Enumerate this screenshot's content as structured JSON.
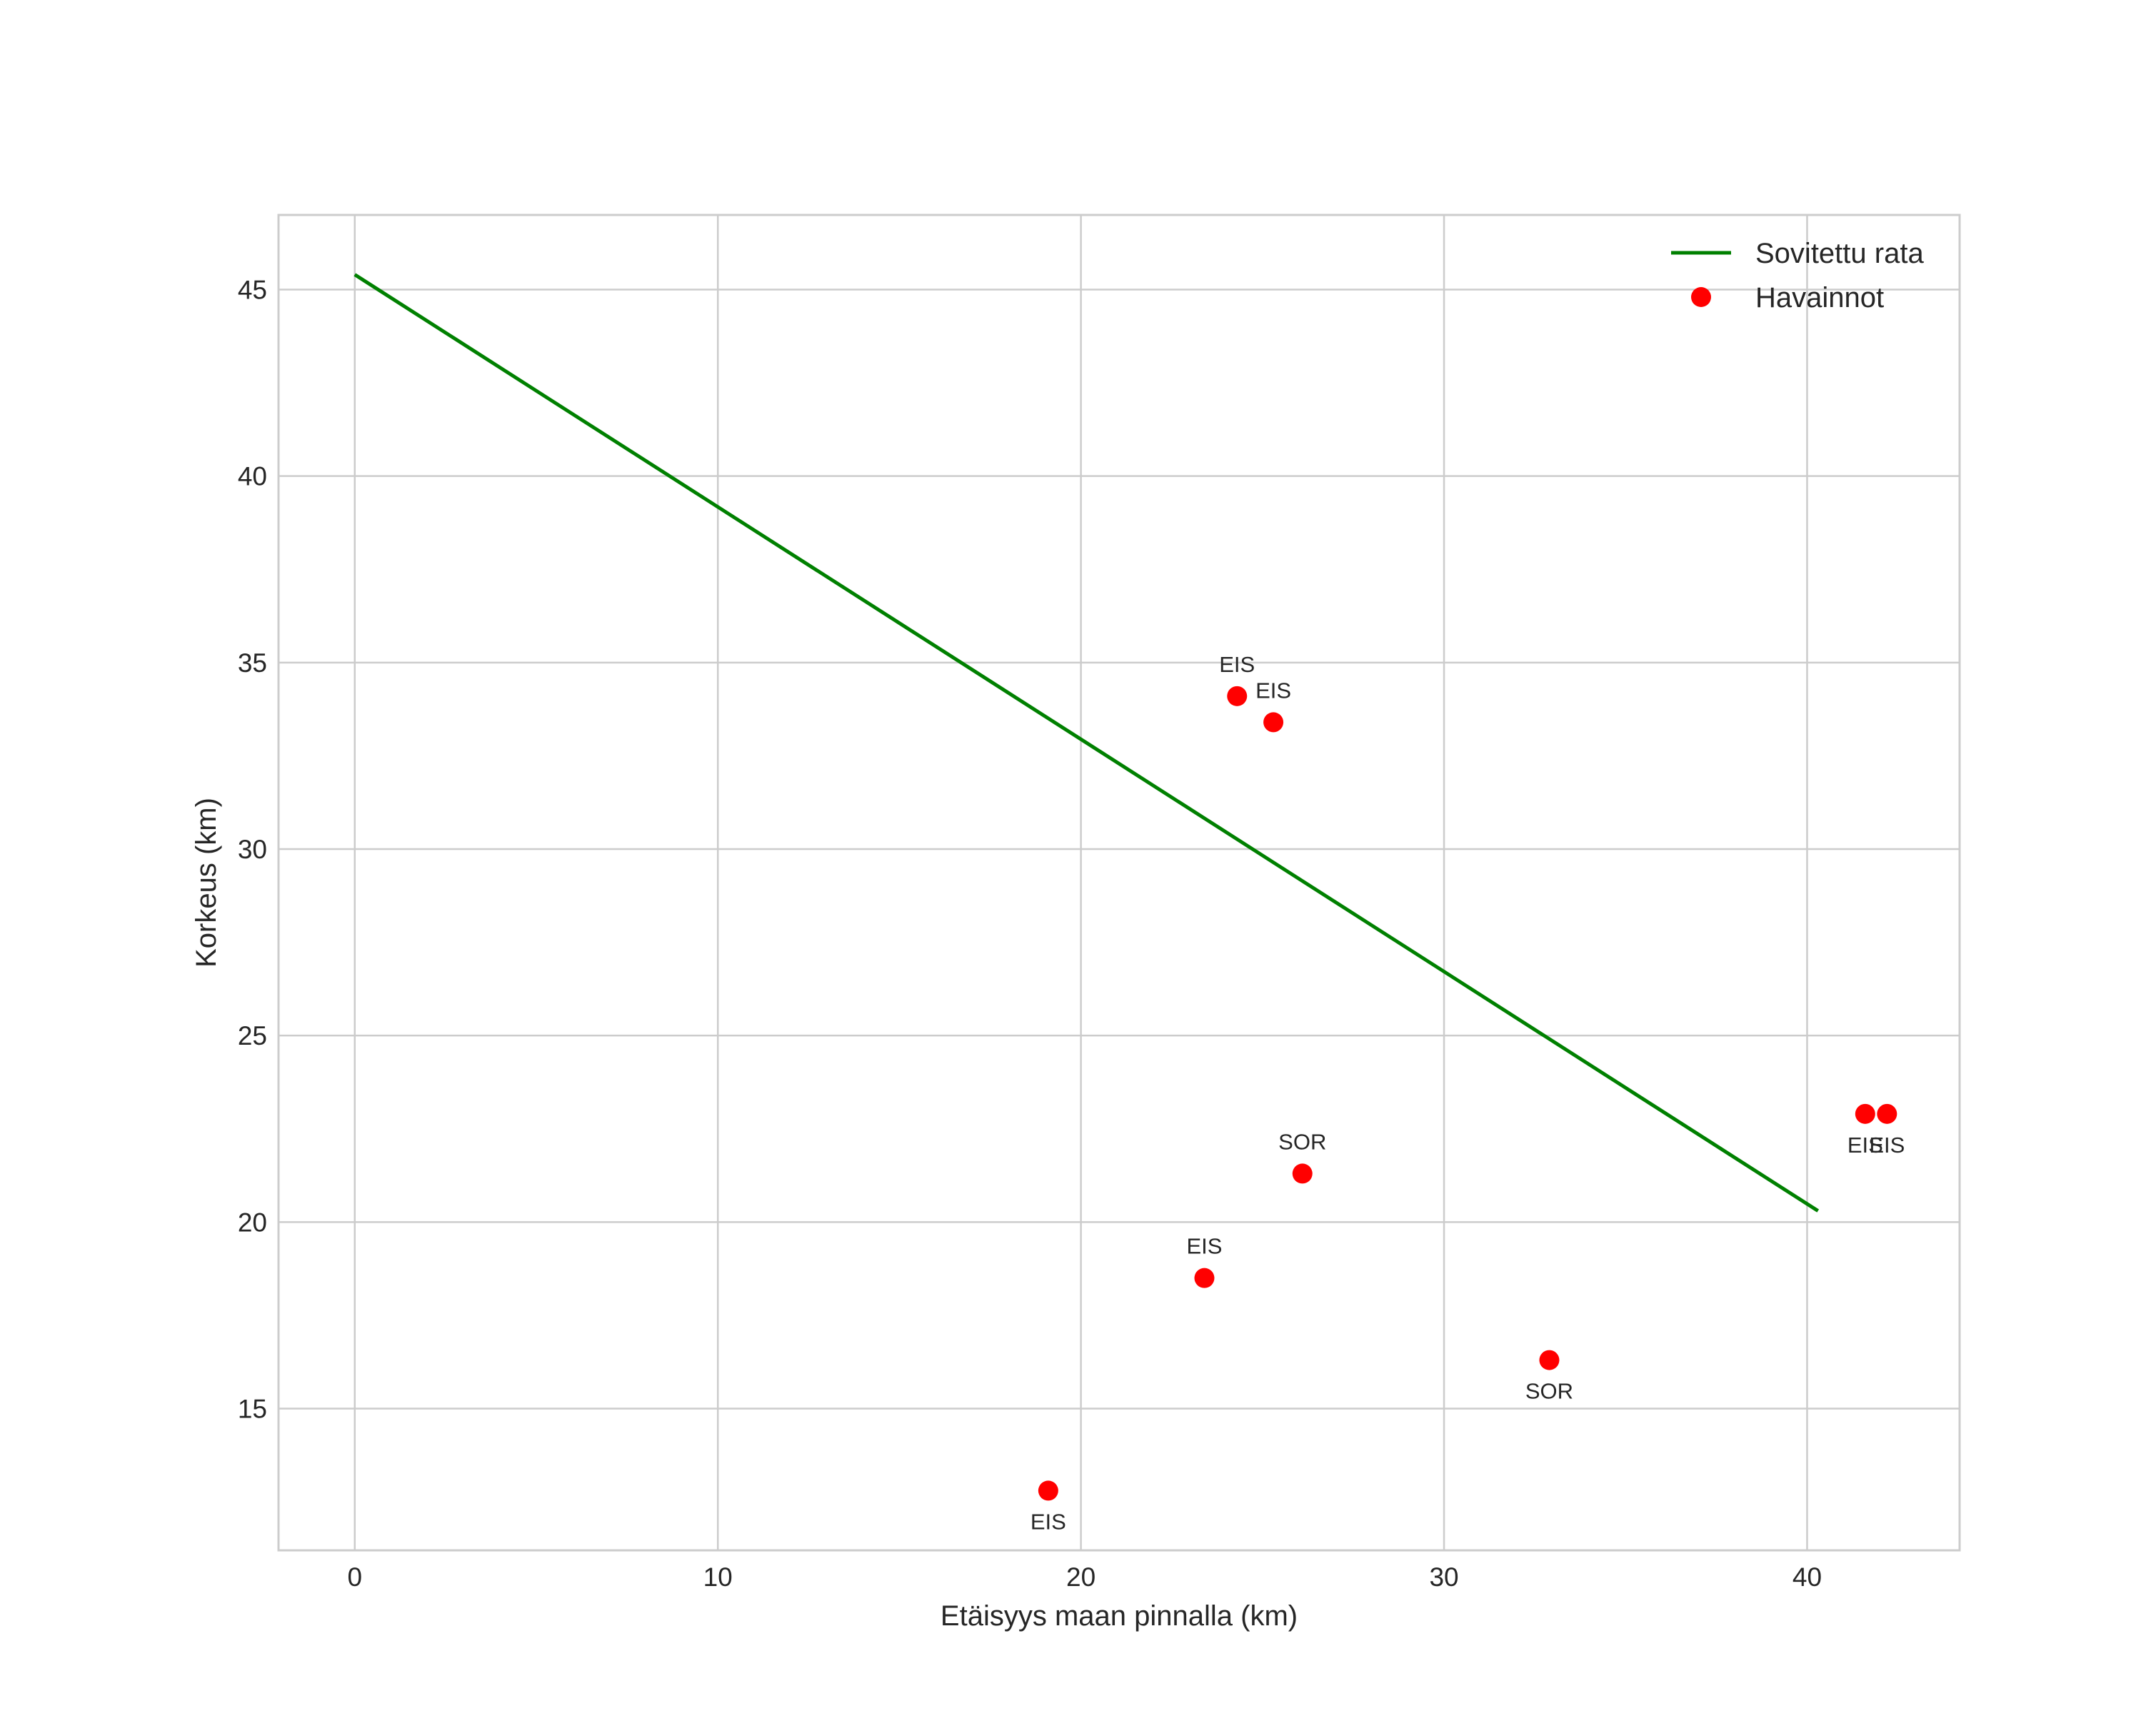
{
  "chart_data": {
    "type": "scatter",
    "title": "",
    "xlabel": "Etäisyys maan pinnalla (km)",
    "ylabel": "Korkeus (km)",
    "xlim": [
      -2.1,
      44.2
    ],
    "ylim": [
      11.2,
      47.0
    ],
    "xticks": [
      0,
      10,
      20,
      30,
      40
    ],
    "yticks": [
      15,
      20,
      25,
      30,
      35,
      40,
      45
    ],
    "grid": true,
    "legend_position": "top-right",
    "colors": {
      "line": "#008000",
      "points": "#ff0000",
      "grid": "#cccccc"
    },
    "series": [
      {
        "name": "Sovitettu rata",
        "kind": "line",
        "x": [
          0,
          40.3
        ],
        "y": [
          45.4,
          20.3
        ]
      },
      {
        "name": "Havainnot",
        "kind": "scatter",
        "points": [
          {
            "x": 24.3,
            "y": 34.1,
            "label": "EIS",
            "label_side": "above"
          },
          {
            "x": 25.3,
            "y": 33.4,
            "label": "EIS",
            "label_side": "above"
          },
          {
            "x": 26.1,
            "y": 21.3,
            "label": "SOR",
            "label_side": "above"
          },
          {
            "x": 23.4,
            "y": 18.5,
            "label": "EIS",
            "label_side": "above"
          },
          {
            "x": 32.9,
            "y": 16.3,
            "label": "SOR",
            "label_side": "below"
          },
          {
            "x": 19.1,
            "y": 12.8,
            "label": "EIS",
            "label_side": "below"
          },
          {
            "x": 41.6,
            "y": 22.9,
            "label": "EIS",
            "label_side": "below"
          },
          {
            "x": 42.2,
            "y": 22.9,
            "label": "EIS",
            "label_side": "below"
          }
        ]
      }
    ]
  }
}
